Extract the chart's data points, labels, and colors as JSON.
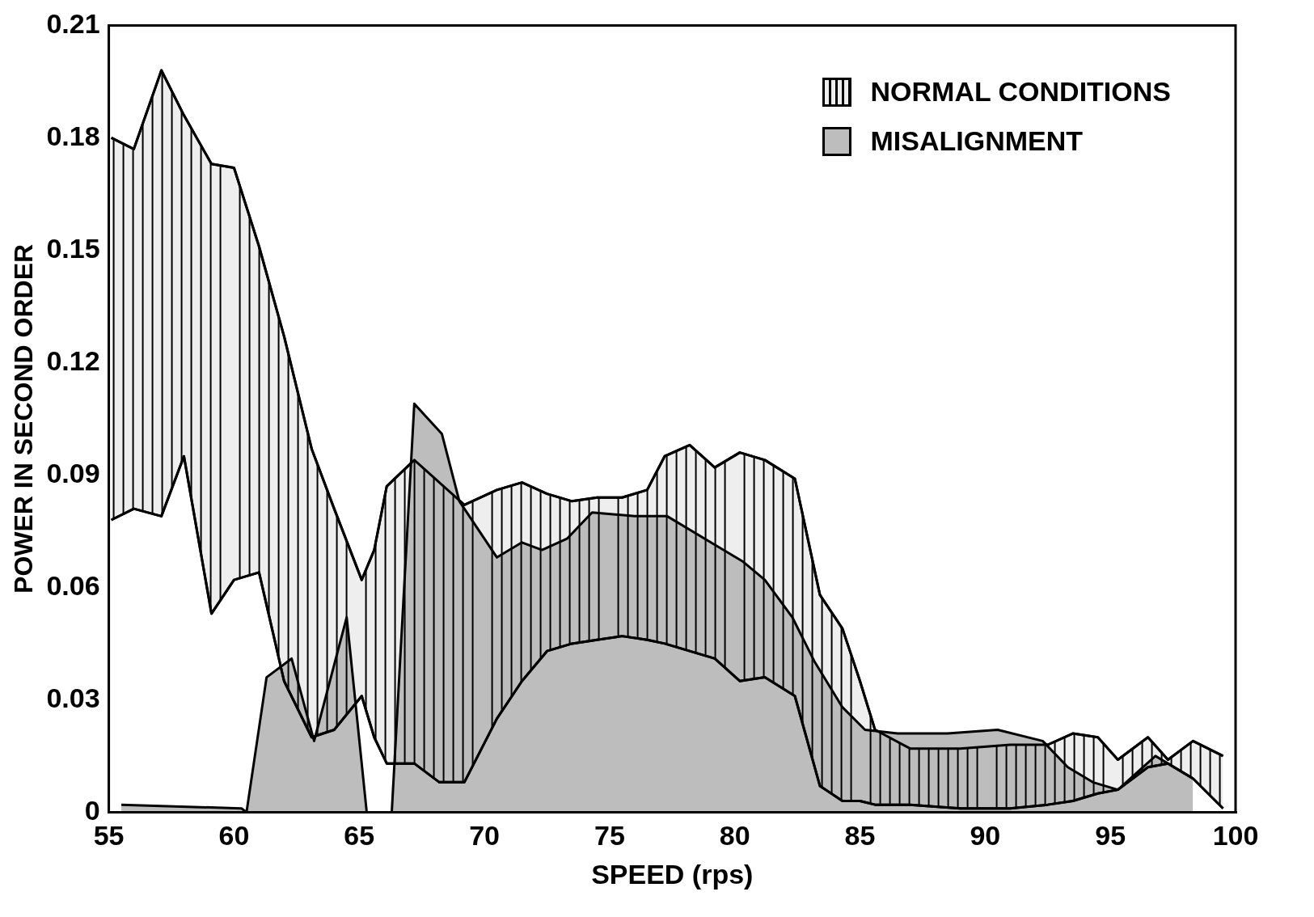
{
  "chart_data": {
    "type": "area",
    "xlabel": "SPEED (rps)",
    "ylabel": "POWER IN SECOND ORDER",
    "xlim": [
      55,
      100
    ],
    "xticks": [
      55,
      60,
      65,
      70,
      75,
      80,
      85,
      90,
      95,
      100
    ],
    "ylim": [
      0,
      0.21
    ],
    "yticks": [
      0,
      0.03,
      0.06,
      0.09,
      0.12,
      0.15,
      0.18,
      0.21
    ],
    "grid": false,
    "legend": "top right",
    "series": [
      {
        "name": "MISALIGNMENT",
        "color": "#bdbdbd",
        "x": [
          55.5,
          60.3,
          60.5,
          61.3,
          62.3,
          63.2,
          64.5,
          65.3,
          66.3,
          67.2,
          68.3,
          69.0,
          70.5,
          71.5,
          72.3,
          73.3,
          74.3,
          76.0,
          77.3,
          79.3,
          80.3,
          81.2,
          82.3,
          83.2,
          84.3,
          85.2,
          86.5,
          88.5,
          90.5,
          92.3,
          93.3,
          94.3,
          95.3,
          96.8,
          98.3
        ],
        "values": [
          0.002,
          0.001,
          0,
          0.036,
          0.041,
          0.019,
          0.052,
          0,
          0,
          0.109,
          0.101,
          0.083,
          0.068,
          0.072,
          0.07,
          0.073,
          0.08,
          0.079,
          0.079,
          0.071,
          0.067,
          0.062,
          0.052,
          0.04,
          0.028,
          0.022,
          0.021,
          0.021,
          0.022,
          0.019,
          0.012,
          0.008,
          0.006,
          0.015,
          0.009
        ]
      },
      {
        "type": "line",
        "color": "#000000",
        "x": [
          55.1,
          56.0,
          57.1,
          58.0,
          59.1,
          60.0,
          61.0,
          62.0,
          63.1,
          64.0,
          65.1,
          65.6,
          66.1,
          67.2,
          68.2,
          69.2,
          70.5,
          71.5,
          72.5,
          73.5,
          74.5,
          75.5,
          76.5,
          77.2,
          78.2,
          79.2,
          80.2,
          81.2,
          82.4,
          83.4,
          84.3,
          85.0,
          85.6,
          87.0,
          89.0,
          91.0,
          92.5,
          93.5,
          94.5,
          95.3,
          96.5,
          97.3,
          98.3,
          99.5
        ],
        "values": [
          0.078,
          0.081,
          0.079,
          0.095,
          0.053,
          0.062,
          0.064,
          0.035,
          0.02,
          0.022,
          0.031,
          0.02,
          0.013,
          0.013,
          0.008,
          0.008,
          0.025,
          0.035,
          0.043,
          0.045,
          0.046,
          0.047,
          0.046,
          0.045,
          0.043,
          0.041,
          0.035,
          0.036,
          0.031,
          0.007,
          0.003,
          0.003,
          0.002,
          0.002,
          0.001,
          0.001,
          0.002,
          0.003,
          0.005,
          0.006,
          0.012,
          0.013,
          0.009,
          0.001
        ]
      },
      {
        "name": "NORMAL CONDITIONS",
        "color": "#eeeeee",
        "x": [
          55.1,
          56.0,
          57.1,
          58.0,
          59.1,
          60.0,
          61.0,
          62.0,
          63.1,
          64.0,
          65.1,
          65.6,
          66.1,
          67.2,
          68.2,
          69.2,
          70.5,
          71.5,
          72.5,
          73.5,
          74.5,
          75.5,
          76.5,
          77.2,
          78.2,
          79.2,
          80.2,
          81.2,
          82.4,
          83.4,
          84.3,
          85.0,
          85.6,
          87.0,
          89.0,
          91.0,
          92.5,
          93.5,
          94.5,
          95.3,
          96.5,
          97.3,
          98.3,
          99.5
        ],
        "values": [
          0.18,
          0.177,
          0.198,
          0.186,
          0.173,
          0.172,
          0.151,
          0.127,
          0.097,
          0.081,
          0.062,
          0.07,
          0.087,
          0.094,
          0.088,
          0.082,
          0.086,
          0.088,
          0.085,
          0.083,
          0.084,
          0.084,
          0.086,
          0.095,
          0.098,
          0.092,
          0.096,
          0.094,
          0.089,
          0.058,
          0.049,
          0.035,
          0.022,
          0.017,
          0.017,
          0.018,
          0.018,
          0.021,
          0.02,
          0.014,
          0.02,
          0.014,
          0.019,
          0.015
        ]
      }
    ]
  }
}
